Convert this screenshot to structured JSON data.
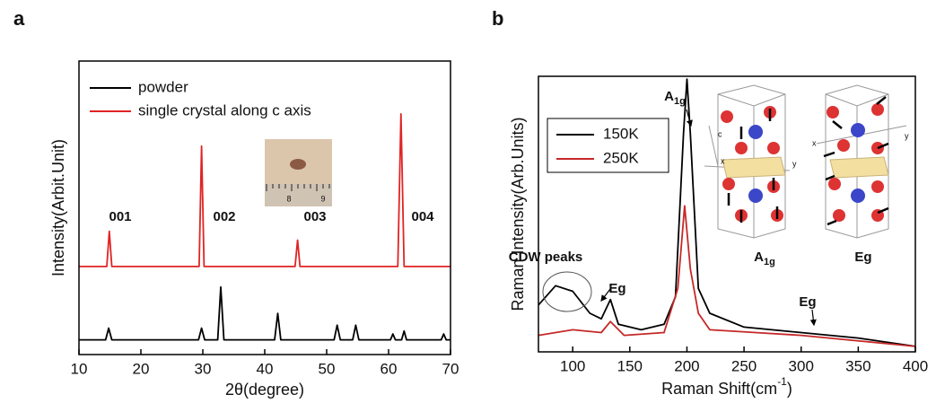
{
  "chart_data": [
    {
      "type": "line",
      "panel_label": "a",
      "x_label": "2θ(degree)",
      "y_label": "Intensity(Arbit.Unit)",
      "xlim": [
        10,
        70
      ],
      "ylim": [
        0,
        100
      ],
      "xticks": [
        10,
        20,
        30,
        40,
        50,
        60,
        70
      ],
      "series": [
        {
          "name": "powder",
          "color": "#000000",
          "x": [
            10,
            14.3,
            14.8,
            15.3,
            29.3,
            29.8,
            30.3,
            32.4,
            32.9,
            33.4,
            41.6,
            42.1,
            42.6,
            51.2,
            51.7,
            52.2,
            54.2,
            54.7,
            55.2,
            60.3,
            60.7,
            61.1,
            62.1,
            62.5,
            62.9,
            68.5,
            68.9,
            69.3,
            70
          ],
          "values": [
            5,
            5,
            9,
            5,
            5,
            9,
            5,
            5,
            23,
            5,
            5,
            14,
            5,
            5,
            10,
            5,
            5,
            10,
            5,
            5,
            7,
            5,
            5,
            8,
            5,
            5,
            7,
            5,
            5
          ]
        },
        {
          "name": "single crystal along c axis",
          "color": "#e02424",
          "x": [
            10,
            14.5,
            14.9,
            15.3,
            29.4,
            29.8,
            30.2,
            44.9,
            45.3,
            45.7,
            61.5,
            62,
            62.5,
            70
          ],
          "values": [
            30,
            30,
            42,
            30,
            30,
            71,
            30,
            30,
            39,
            30,
            30,
            82,
            30,
            30
          ]
        }
      ],
      "annotations": [
        {
          "text": "001"
        },
        {
          "text": "002"
        },
        {
          "text": "003"
        },
        {
          "text": "004"
        }
      ],
      "inset_labels": [
        "8",
        "9"
      ]
    },
    {
      "type": "line",
      "panel_label": "b",
      "x_label": {
        "text": "Raman Shift(cm",
        "sup": "-1",
        "end": ")"
      },
      "y_label": "Raman Intensity(Arb.Units)",
      "xlim": [
        70,
        400
      ],
      "ylim": [
        0,
        100
      ],
      "xticks": [
        100,
        150,
        200,
        250,
        300,
        350,
        400
      ],
      "series": [
        {
          "name": "150K",
          "color": "#000000",
          "x": [
            70,
            85,
            100,
            115,
            125,
            133,
            140,
            160,
            180,
            190,
            197,
            200,
            203,
            210,
            220,
            250,
            300,
            350,
            400
          ],
          "values": [
            17,
            24,
            22,
            14,
            12,
            19,
            10,
            8,
            10,
            20,
            79,
            99,
            79,
            23,
            14,
            9,
            7,
            5,
            2
          ]
        },
        {
          "name": "250K",
          "color": "#c62828",
          "x": [
            70,
            100,
            125,
            133,
            145,
            180,
            192,
            198,
            203,
            210,
            220,
            260,
            300,
            400
          ],
          "values": [
            6,
            8,
            7,
            11,
            6,
            7,
            23,
            53,
            30,
            14,
            8,
            7,
            6,
            2
          ]
        }
      ],
      "annotations": [
        {
          "text": "A",
          "sub": "1g"
        },
        {
          "text": "CDW peaks"
        },
        {
          "text": "Eg"
        },
        {
          "text": "Eg"
        },
        {
          "text": "A",
          "sub": "1g"
        },
        {
          "text": "Eg"
        }
      ],
      "structure_labels": [
        "c",
        "x",
        "y",
        "x",
        "y"
      ]
    }
  ]
}
